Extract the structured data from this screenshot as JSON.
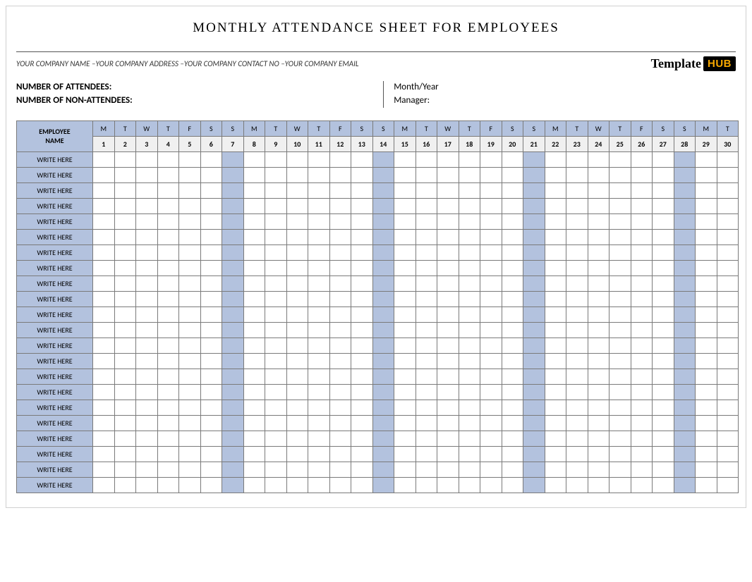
{
  "title": "Monthly Attendance Sheet for Employees",
  "company_line": "YOUR COMPANY NAME –YOUR COMPANY ADDRESS –YOUR COMPANY CONTACT NO –YOUR COMPANY EMAIL",
  "logo": {
    "text1": "Template",
    "text2": "HUB"
  },
  "info": {
    "attendees_label": "NUMBER OF ATTENDEES:",
    "non_attendees_label": "NUMBER OF NON-ATTENDEES:",
    "month_year_label": "Month/Year",
    "manager_label": "Manager:"
  },
  "table": {
    "employee_name_header": "EMPLOYEE NAME",
    "row_placeholder": "WRITE HERE",
    "num_rows": 22,
    "days": [
      {
        "letter": "M",
        "num": "1",
        "hl": false
      },
      {
        "letter": "T",
        "num": "2",
        "hl": false
      },
      {
        "letter": "W",
        "num": "3",
        "hl": false
      },
      {
        "letter": "T",
        "num": "4",
        "hl": false
      },
      {
        "letter": "F",
        "num": "5",
        "hl": false
      },
      {
        "letter": "S",
        "num": "6",
        "hl": false
      },
      {
        "letter": "S",
        "num": "7",
        "hl": true
      },
      {
        "letter": "M",
        "num": "8",
        "hl": false
      },
      {
        "letter": "T",
        "num": "9",
        "hl": false
      },
      {
        "letter": "W",
        "num": "10",
        "hl": false
      },
      {
        "letter": "T",
        "num": "11",
        "hl": false
      },
      {
        "letter": "F",
        "num": "12",
        "hl": false
      },
      {
        "letter": "S",
        "num": "13",
        "hl": false
      },
      {
        "letter": "S",
        "num": "14",
        "hl": true
      },
      {
        "letter": "M",
        "num": "15",
        "hl": false
      },
      {
        "letter": "T",
        "num": "16",
        "hl": false
      },
      {
        "letter": "W",
        "num": "17",
        "hl": false
      },
      {
        "letter": "T",
        "num": "18",
        "hl": false
      },
      {
        "letter": "F",
        "num": "19",
        "hl": false
      },
      {
        "letter": "S",
        "num": "20",
        "hl": false
      },
      {
        "letter": "S",
        "num": "21",
        "hl": true
      },
      {
        "letter": "M",
        "num": "22",
        "hl": false
      },
      {
        "letter": "T",
        "num": "23",
        "hl": false
      },
      {
        "letter": "W",
        "num": "24",
        "hl": false
      },
      {
        "letter": "T",
        "num": "25",
        "hl": false
      },
      {
        "letter": "F",
        "num": "26",
        "hl": false
      },
      {
        "letter": "S",
        "num": "27",
        "hl": false
      },
      {
        "letter": "S",
        "num": "28",
        "hl": true
      },
      {
        "letter": "M",
        "num": "29",
        "hl": false
      },
      {
        "letter": "T",
        "num": "30",
        "hl": false
      }
    ],
    "colors": {
      "header_bg": "#b3c2de",
      "num_bg": "#f0f0f0",
      "border": "#7a7a7a",
      "highlight_bg": "#b3c2de"
    }
  }
}
